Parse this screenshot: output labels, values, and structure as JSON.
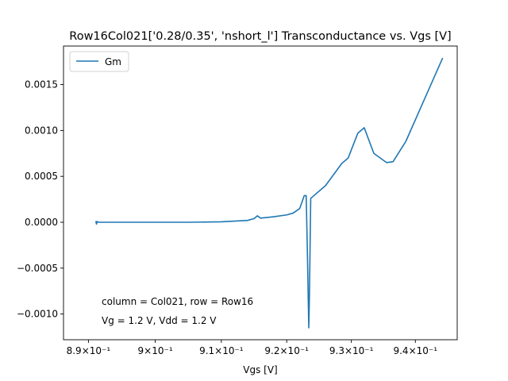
{
  "chart_data": {
    "type": "line",
    "title": "Row16Col021['0.28/0.35', 'nshort_l'] Transconductance vs. Vgs [V]",
    "xlabel": "Vgs [V]",
    "ylabel": "",
    "xscale": "log",
    "xlim": [
      0.8863,
      0.9466
    ],
    "ylim": [
      -0.00128,
      0.00192
    ],
    "xticks": [
      {
        "value": 0.89,
        "label": "8.9×10⁻¹"
      },
      {
        "value": 0.9,
        "label": "9×10⁻¹"
      },
      {
        "value": 0.91,
        "label": "9.1×10⁻¹"
      },
      {
        "value": 0.92,
        "label": "9.2×10⁻¹"
      },
      {
        "value": 0.93,
        "label": "9.3×10⁻¹"
      },
      {
        "value": 0.94,
        "label": "9.4×10⁻¹"
      }
    ],
    "yticks": [
      {
        "value": 0.0015,
        "label": "0.0015"
      },
      {
        "value": 0.001,
        "label": "0.0010"
      },
      {
        "value": 0.0005,
        "label": "0.0005"
      },
      {
        "value": 0.0,
        "label": "0.0000"
      },
      {
        "value": -0.0005,
        "label": "−0.0005"
      },
      {
        "value": -0.001,
        "label": "−0.0010"
      }
    ],
    "legend_position": "top-left",
    "grid": false,
    "series": [
      {
        "name": "Gm",
        "color": "#1f77b4",
        "points": [
          [
            0.8911,
            1.2e-05
          ],
          [
            0.8912,
            -2e-05
          ],
          [
            0.8913,
            8e-06
          ],
          [
            0.8915,
            0.0
          ],
          [
            0.895,
            0.0
          ],
          [
            0.9,
            0.0
          ],
          [
            0.905,
            0.0
          ],
          [
            0.91,
            5e-06
          ],
          [
            0.914,
            2e-05
          ],
          [
            0.915,
            4e-05
          ],
          [
            0.9155,
            7e-05
          ],
          [
            0.916,
            4.5e-05
          ],
          [
            0.918,
            6e-05
          ],
          [
            0.92,
            8e-05
          ],
          [
            0.921,
            0.0001
          ],
          [
            0.922,
            0.00015
          ],
          [
            0.9227,
            0.00029
          ],
          [
            0.923,
            0.00029
          ],
          [
            0.9232,
            -0.00038
          ],
          [
            0.9234,
            -0.00115
          ],
          [
            0.9235,
            -0.0008
          ],
          [
            0.9237,
            0.00026
          ],
          [
            0.926,
            0.0004
          ],
          [
            0.9285,
            0.00064
          ],
          [
            0.9295,
            0.0007
          ],
          [
            0.931,
            0.00097
          ],
          [
            0.932,
            0.00103
          ],
          [
            0.9335,
            0.00075
          ],
          [
            0.9355,
            0.00065
          ],
          [
            0.9365,
            0.00066
          ],
          [
            0.9385,
            0.00088
          ],
          [
            0.9443,
            0.00179
          ]
        ]
      }
    ],
    "annotations": [
      "column = Col021, row = Row16",
      "Vg = 1.2 V, Vdd = 1.2 V"
    ]
  }
}
